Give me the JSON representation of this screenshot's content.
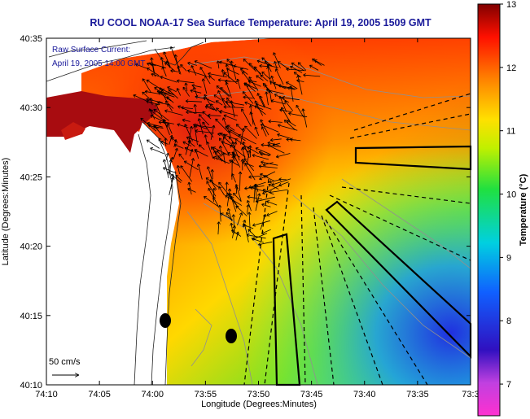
{
  "title": "RU COOL  NOAA-17  Sea Surface Temperature:  April 19, 2005 1509 GMT",
  "overlay": {
    "line1": "Raw Surface Current:",
    "line2": "April 19, 2005 14:00 GMT"
  },
  "scale_label": "50 cm/s",
  "x_axis": {
    "label": "Longitude (Degrees:Minutes)",
    "ticks": [
      "74:10",
      "74:05",
      "74:00",
      "73:55",
      "73:50",
      "73:45",
      "73:40",
      "73:35",
      "73:3"
    ]
  },
  "y_axis": {
    "label": "Latitude (Degrees:Minutes)",
    "ticks": [
      "40:35",
      "40:30",
      "40:25",
      "40:20",
      "40:15",
      "40:10"
    ]
  },
  "colorbar": {
    "label": "Temperature (°C)",
    "ticks": [
      "13",
      "12",
      "11",
      "10",
      "9",
      "8",
      "7"
    ],
    "range": [
      6.5,
      13
    ]
  },
  "colors": {
    "title": "#1a1a9a",
    "land": "#ffffff",
    "warm": "#b01010",
    "cool": "#2040e0"
  }
}
